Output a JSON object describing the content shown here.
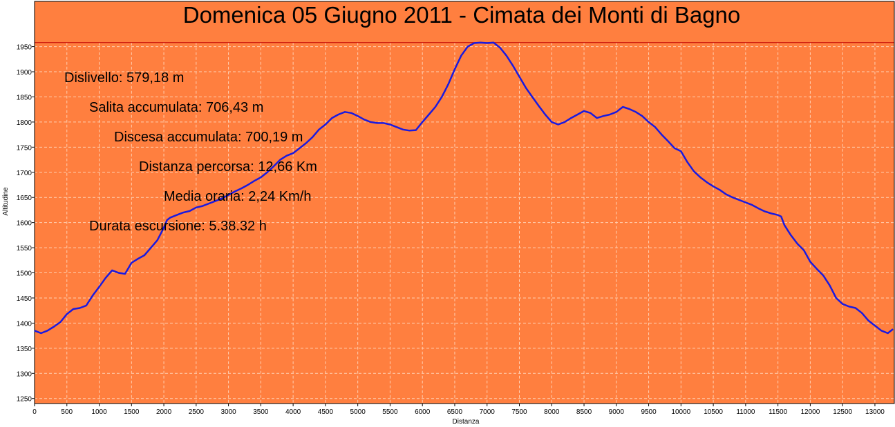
{
  "chart_data": {
    "type": "area",
    "title": "Domenica 05 Giugno 2011 - Cimata dei Monti di Bagno",
    "xlabel": "Distanza",
    "ylabel": "Altitudine",
    "xlim": [
      0,
      13300
    ],
    "ylim": [
      1240,
      2040
    ],
    "x_ticks": [
      0,
      500,
      1000,
      1500,
      2000,
      2500,
      3000,
      3500,
      4000,
      4500,
      5000,
      5500,
      6000,
      6500,
      7000,
      7500,
      8000,
      8500,
      9000,
      9500,
      10000,
      10500,
      11000,
      11500,
      12000,
      12500,
      13000
    ],
    "y_ticks": [
      1250,
      1300,
      1350,
      1400,
      1450,
      1500,
      1550,
      1600,
      1650,
      1700,
      1750,
      1800,
      1850,
      1900,
      1950
    ],
    "grid": true,
    "max_line": 1958,
    "stats": [
      "Dislivello: 579,18 m",
      "Salita accumulata: 706,43 m",
      "Discesa accumulata: 700,19 m",
      "Distanza percorsa: 12,66 Km",
      "Media oraria: 2,24 Km/h",
      "Durata escursione: 5.38.32 h"
    ],
    "series": [
      {
        "x": [
          0,
          100,
          200,
          300,
          400,
          500,
          600,
          700,
          800,
          900,
          1000,
          1100,
          1200,
          1300,
          1400,
          1500,
          1600,
          1700,
          1800,
          1900,
          2000,
          2050,
          2100,
          2200,
          2300,
          2400,
          2500,
          2600,
          2700,
          2800,
          2900,
          3000,
          3100,
          3200,
          3300,
          3400,
          3500,
          3600,
          3700,
          3800,
          3900,
          4000,
          4100,
          4200,
          4300,
          4400,
          4500,
          4600,
          4700,
          4800,
          4900,
          5000,
          5100,
          5200,
          5300,
          5400,
          5500,
          5600,
          5700,
          5800,
          5900,
          6000,
          6100,
          6200,
          6300,
          6400,
          6500,
          6600,
          6700,
          6800,
          6900,
          7000,
          7100,
          7200,
          7300,
          7400,
          7500,
          7600,
          7700,
          7800,
          7900,
          8000,
          8100,
          8200,
          8300,
          8400,
          8500,
          8600,
          8700,
          8800,
          8900,
          9000,
          9100,
          9200,
          9300,
          9400,
          9500,
          9600,
          9700,
          9800,
          9900,
          10000,
          10100,
          10200,
          10300,
          10400,
          10500,
          10600,
          10700,
          10800,
          10900,
          11000,
          11100,
          11200,
          11300,
          11400,
          11500,
          11550,
          11600,
          11700,
          11800,
          11900,
          12000,
          12100,
          12200,
          12300,
          12400,
          12500,
          12600,
          12700,
          12800,
          12900,
          13000,
          13100,
          13200,
          13280
        ],
        "y": [
          1385,
          1380,
          1385,
          1393,
          1402,
          1418,
          1428,
          1430,
          1435,
          1455,
          1472,
          1490,
          1505,
          1500,
          1498,
          1520,
          1528,
          1535,
          1550,
          1565,
          1590,
          1605,
          1610,
          1615,
          1620,
          1623,
          1630,
          1633,
          1638,
          1643,
          1648,
          1655,
          1662,
          1668,
          1675,
          1683,
          1690,
          1700,
          1712,
          1725,
          1733,
          1738,
          1748,
          1758,
          1770,
          1785,
          1795,
          1808,
          1815,
          1820,
          1818,
          1812,
          1805,
          1800,
          1798,
          1798,
          1795,
          1790,
          1785,
          1783,
          1784,
          1800,
          1815,
          1830,
          1850,
          1875,
          1905,
          1932,
          1950,
          1957,
          1958,
          1957,
          1958,
          1948,
          1932,
          1912,
          1890,
          1868,
          1850,
          1832,
          1815,
          1800,
          1795,
          1800,
          1808,
          1815,
          1822,
          1818,
          1808,
          1812,
          1815,
          1820,
          1830,
          1826,
          1820,
          1812,
          1800,
          1790,
          1775,
          1762,
          1748,
          1742,
          1720,
          1702,
          1690,
          1680,
          1672,
          1665,
          1656,
          1650,
          1645,
          1640,
          1635,
          1628,
          1622,
          1618,
          1615,
          1612,
          1595,
          1575,
          1558,
          1545,
          1522,
          1508,
          1495,
          1475,
          1450,
          1438,
          1433,
          1430,
          1420,
          1405,
          1395,
          1385,
          1380,
          1388
        ]
      }
    ]
  }
}
